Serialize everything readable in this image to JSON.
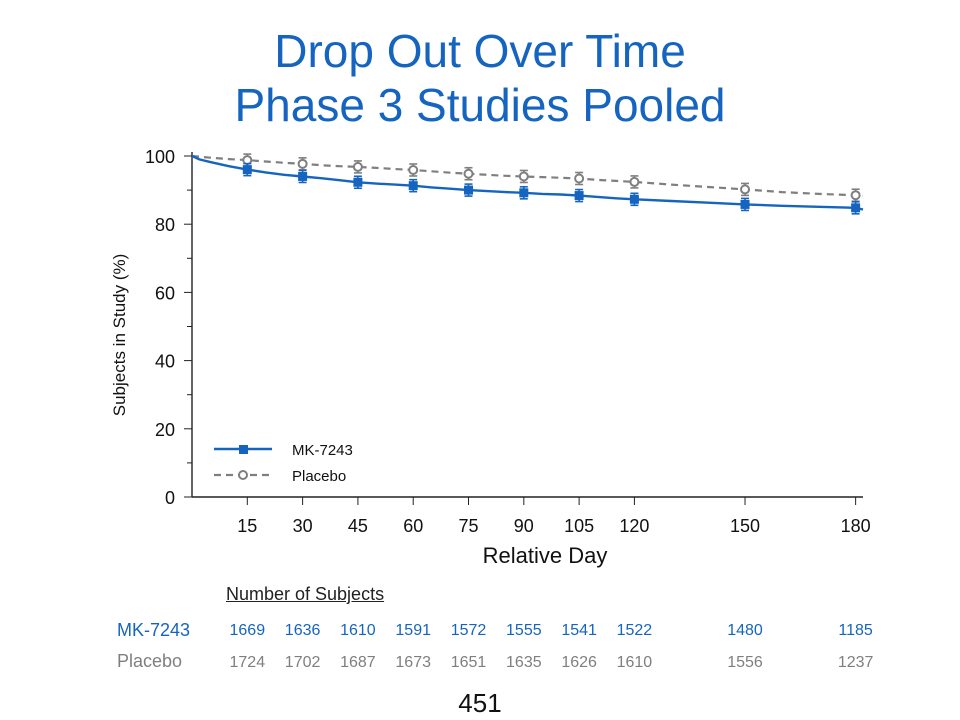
{
  "title": {
    "line1": "Drop Out Over Time",
    "line2": "Phase 3 Studies Pooled"
  },
  "colors": {
    "title": "#1565c0",
    "mk": "#1565c0",
    "placebo": "#7f7f7f"
  },
  "chart_data": {
    "type": "line",
    "title": "Drop Out Over Time Phase 3 Studies Pooled",
    "xlabel": "Relative Day",
    "ylabel": "Subjects in Study (%)",
    "xlim": [
      0,
      182
    ],
    "ylim": [
      0,
      100
    ],
    "x_ticks": [
      "15",
      "30",
      "45",
      "60",
      "75",
      "90",
      "105",
      "120",
      "150",
      "180"
    ],
    "y_ticks": [
      "0",
      "20",
      "40",
      "60",
      "80",
      "100"
    ],
    "legend_position": "bottom-left",
    "series": [
      {
        "name": "MK-7243",
        "marker_x": [
          15,
          30,
          45,
          60,
          75,
          90,
          105,
          120,
          150,
          180
        ],
        "marker_y": [
          96.0,
          94.0,
          92.3,
          91.3,
          90.0,
          89.2,
          88.4,
          87.3,
          85.8,
          84.8
        ],
        "curve_x": [
          0,
          2,
          5,
          10,
          15,
          20,
          25,
          30,
          35,
          40,
          45,
          50,
          55,
          60,
          65,
          70,
          75,
          80,
          85,
          90,
          95,
          100,
          105,
          110,
          115,
          120,
          130,
          140,
          150,
          160,
          170,
          180,
          182
        ],
        "curve_y": [
          100,
          99,
          98.2,
          97,
          96,
          95.2,
          94.5,
          94,
          93.5,
          92.9,
          92.3,
          91.9,
          91.6,
          91.3,
          90.8,
          90.4,
          90.0,
          89.7,
          89.4,
          89.2,
          88.9,
          88.7,
          88.4,
          88.0,
          87.6,
          87.3,
          86.8,
          86.3,
          85.8,
          85.4,
          85.1,
          84.8,
          84.3
        ]
      },
      {
        "name": "Placebo",
        "marker_x": [
          15,
          30,
          45,
          60,
          75,
          90,
          105,
          120,
          150,
          180
        ],
        "marker_y": [
          98.8,
          97.7,
          96.8,
          95.9,
          94.8,
          94.0,
          93.4,
          92.4,
          90.2,
          88.5
        ],
        "curve_x": [
          0,
          5,
          10,
          15,
          20,
          25,
          30,
          35,
          40,
          45,
          50,
          55,
          60,
          65,
          70,
          75,
          80,
          85,
          90,
          95,
          100,
          105,
          110,
          115,
          120,
          130,
          140,
          150,
          160,
          170,
          180,
          182
        ],
        "curve_y": [
          100,
          99.5,
          99.1,
          98.8,
          98.4,
          98.0,
          97.7,
          97.3,
          97.0,
          96.8,
          96.5,
          96.2,
          95.9,
          95.5,
          95.1,
          94.8,
          94.5,
          94.2,
          94.0,
          93.8,
          93.6,
          93.4,
          93.0,
          92.7,
          92.4,
          91.6,
          90.9,
          90.2,
          89.4,
          88.9,
          88.5,
          88.4
        ]
      }
    ]
  },
  "subjects": {
    "heading": "Number of Subjects",
    "days": [
      15,
      30,
      45,
      60,
      75,
      90,
      105,
      120,
      150,
      180
    ],
    "rows": [
      {
        "label": "MK-7243",
        "counts": [
          "1669",
          "1636",
          "1610",
          "1591",
          "1572",
          "1555",
          "1541",
          "1522",
          "1480",
          "1185"
        ]
      },
      {
        "label": "Placebo",
        "counts": [
          "1724",
          "1702",
          "1687",
          "1673",
          "1651",
          "1635",
          "1626",
          "1610",
          "1556",
          "1237"
        ]
      }
    ]
  },
  "page_number": "451"
}
